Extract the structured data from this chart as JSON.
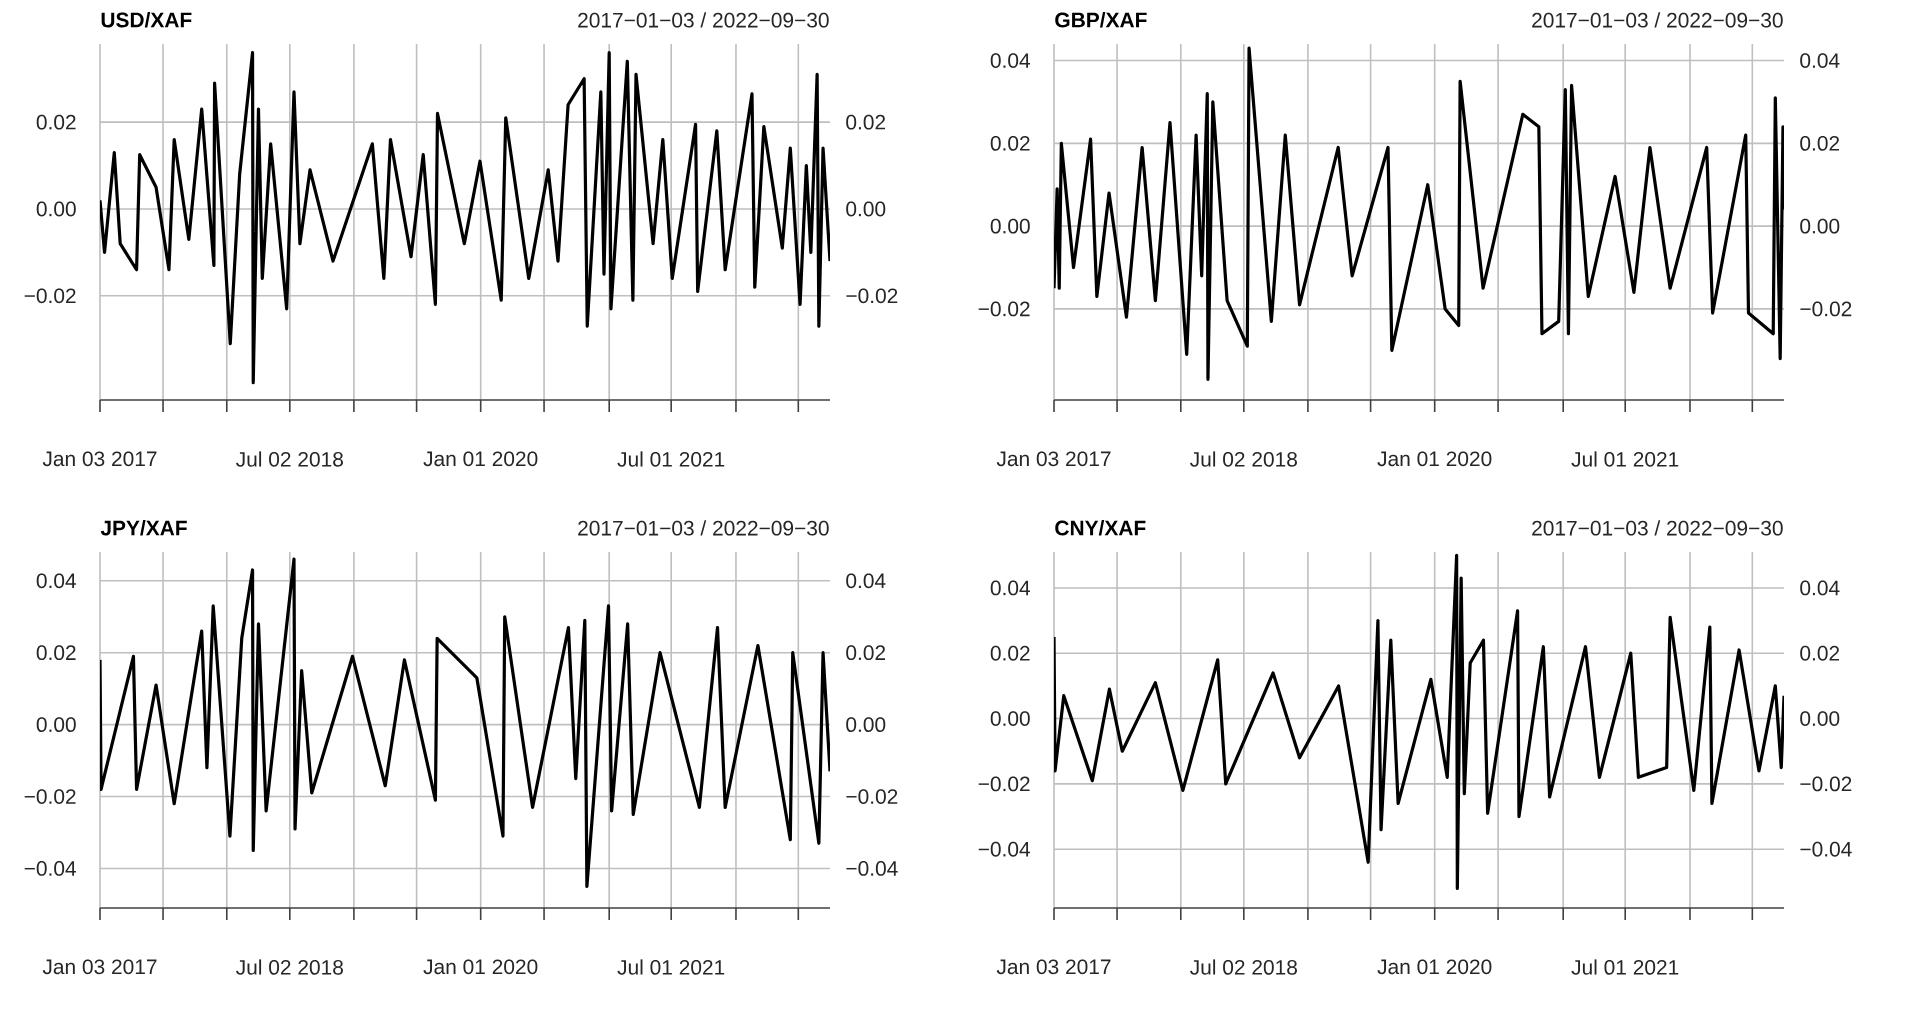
{
  "chart_data": [
    {
      "type": "line",
      "title": "USD/XAF",
      "subtitle": "2017−01−03 / 2022−09−30",
      "grid": true,
      "x": [
        "2017-01-03",
        "2017-01-16",
        "2017-02-13",
        "2017-03-02",
        "2017-04-18",
        "2017-04-27",
        "2017-06-13",
        "2017-07-20",
        "2017-08-04",
        "2017-09-15",
        "2017-10-22",
        "2017-11-26",
        "2017-11-28",
        "2018-01-12",
        "2018-02-08",
        "2018-03-17",
        "2018-03-19",
        "2018-04-03",
        "2018-04-14",
        "2018-05-08",
        "2018-06-23",
        "2018-07-14",
        "2018-07-31",
        "2018-08-29",
        "2018-11-03",
        "2019-02-24",
        "2019-03-29",
        "2019-04-17",
        "2019-06-15",
        "2019-07-20",
        "2019-08-24",
        "2019-08-30",
        "2019-11-15",
        "2019-12-30",
        "2020-02-29",
        "2020-03-13",
        "2020-05-18",
        "2020-07-13",
        "2020-08-10",
        "2020-09-08",
        "2020-10-24",
        "2020-11-02",
        "2020-12-11",
        "2020-12-20",
        "2021-01-04",
        "2021-01-09",
        "2021-02-25",
        "2021-03-13",
        "2021-03-22",
        "2021-05-10",
        "2021-06-07",
        "2021-07-04",
        "2021-09-09",
        "2021-09-15",
        "2021-11-09",
        "2021-12-03",
        "2022-02-18",
        "2022-02-26",
        "2022-03-24",
        "2022-05-16",
        "2022-06-08",
        "2022-07-06",
        "2022-07-24",
        "2022-08-06",
        "2022-08-24",
        "2022-08-29",
        "2022-09-10",
        "2022-09-30"
      ],
      "series": [
        {
          "color": "#000000",
          "values": [
            0.002,
            -0.01,
            0.013,
            -0.008,
            -0.014,
            0.0125,
            0.005,
            -0.014,
            0.016,
            -0.007,
            0.023,
            -0.013,
            0.029,
            -0.031,
            0.008,
            0.036,
            -0.04,
            0.023,
            -0.016,
            0.015,
            -0.023,
            0.027,
            -0.008,
            0.009,
            -0.012,
            0.015,
            -0.016,
            0.016,
            -0.011,
            0.0125,
            -0.022,
            0.022,
            -0.008,
            0.011,
            -0.021,
            0.021,
            -0.016,
            0.009,
            -0.012,
            0.024,
            0.03,
            -0.027,
            0.027,
            -0.015,
            0.036,
            -0.023,
            0.034,
            -0.021,
            0.031,
            -0.008,
            0.016,
            -0.016,
            0.0195,
            -0.019,
            0.018,
            -0.014,
            0.0265,
            -0.018,
            0.019,
            -0.009,
            0.014,
            -0.022,
            0.01,
            -0.01,
            0.031,
            -0.027,
            0.014,
            -0.012
          ]
        }
      ],
      "xlim": [
        "2017-01-03",
        "2022-09-30"
      ],
      "xticks": [
        {
          "value": "2017-01-03",
          "label": "Jan 03 2017"
        },
        {
          "value": "2017-07-03",
          "label": null
        },
        {
          "value": "2018-01-02",
          "label": null
        },
        {
          "value": "2018-07-02",
          "label": "Jul 02 2018"
        },
        {
          "value": "2019-01-02",
          "label": null
        },
        {
          "value": "2019-07-01",
          "label": null
        },
        {
          "value": "2020-01-01",
          "label": "Jan 01 2020"
        },
        {
          "value": "2020-07-01",
          "label": null
        },
        {
          "value": "2021-01-04",
          "label": null
        },
        {
          "value": "2021-07-01",
          "label": "Jul 01 2021"
        },
        {
          "value": "2022-01-03",
          "label": null
        },
        {
          "value": "2022-07-01",
          "label": null
        }
      ],
      "ylim": [
        -0.044,
        0.038
      ],
      "yticks": [
        {
          "value": -0.02,
          "label": "−0.02"
        },
        {
          "value": 0,
          "label": "0.00"
        },
        {
          "value": 0.02,
          "label": "0.02"
        }
      ],
      "y2lim": [
        -0.044,
        0.038
      ],
      "y2ticks": [
        {
          "value": -0.02,
          "label": "−0.02"
        },
        {
          "value": 0,
          "label": "0.00"
        },
        {
          "value": 0.02,
          "label": "0.02"
        }
      ]
    },
    {
      "type": "line",
      "title": "GBP/XAF",
      "subtitle": "2017−01−03 / 2022−09−30",
      "grid": true,
      "x": [
        "2017-01-03",
        "2017-01-12",
        "2017-01-18",
        "2017-01-24",
        "2017-02-28",
        "2017-04-18",
        "2017-05-06",
        "2017-06-10",
        "2017-07-30",
        "2017-09-13",
        "2017-10-21",
        "2017-12-02",
        "2018-01-19",
        "2018-02-15",
        "2018-03-03",
        "2018-03-19",
        "2018-03-21",
        "2018-04-04",
        "2018-05-15",
        "2018-07-12",
        "2018-07-17",
        "2018-09-19",
        "2018-10-29",
        "2018-12-09",
        "2019-03-30",
        "2019-05-09",
        "2019-08-20",
        "2019-08-31",
        "2019-12-12",
        "2020-01-31",
        "2020-03-10",
        "2020-03-14",
        "2020-05-19",
        "2020-09-10",
        "2020-10-26",
        "2020-11-04",
        "2020-12-22",
        "2021-01-10",
        "2021-01-19",
        "2021-01-28",
        "2021-03-17",
        "2021-06-02",
        "2021-07-26",
        "2021-09-10",
        "2021-11-07",
        "2022-02-20",
        "2022-03-09",
        "2022-06-12",
        "2022-06-20",
        "2022-08-30",
        "2022-09-05",
        "2022-09-19",
        "2022-09-27",
        "2022-09-30"
      ],
      "series": [
        {
          "color": "#000000",
          "values": [
            -0.015,
            0.009,
            -0.015,
            0.02,
            -0.01,
            0.021,
            -0.017,
            0.008,
            -0.022,
            0.019,
            -0.018,
            0.025,
            -0.031,
            0.022,
            -0.012,
            0.032,
            -0.037,
            0.03,
            -0.018,
            -0.029,
            0.043,
            -0.023,
            0.022,
            -0.019,
            0.019,
            -0.012,
            0.019,
            -0.03,
            0.01,
            -0.02,
            -0.024,
            0.035,
            -0.015,
            0.027,
            0.024,
            -0.026,
            -0.023,
            0.033,
            -0.026,
            0.034,
            -0.017,
            0.012,
            -0.016,
            0.019,
            -0.015,
            0.019,
            -0.021,
            0.022,
            -0.021,
            -0.026,
            0.031,
            -0.032,
            0.024,
            0.004
          ]
        }
      ],
      "xlim": [
        "2017-01-03",
        "2022-09-30"
      ],
      "xticks": [
        {
          "value": "2017-01-03",
          "label": "Jan 03 2017"
        },
        {
          "value": "2017-07-03",
          "label": null
        },
        {
          "value": "2018-01-02",
          "label": null
        },
        {
          "value": "2018-07-02",
          "label": "Jul 02 2018"
        },
        {
          "value": "2019-01-02",
          "label": null
        },
        {
          "value": "2019-07-01",
          "label": null
        },
        {
          "value": "2020-01-01",
          "label": "Jan 01 2020"
        },
        {
          "value": "2020-07-01",
          "label": null
        },
        {
          "value": "2021-01-04",
          "label": null
        },
        {
          "value": "2021-07-01",
          "label": "Jul 01 2021"
        },
        {
          "value": "2022-01-03",
          "label": null
        },
        {
          "value": "2022-07-01",
          "label": null
        }
      ],
      "ylim": [
        -0.042,
        0.044
      ],
      "yticks": [
        {
          "value": -0.02,
          "label": "−0.02"
        },
        {
          "value": 0,
          "label": "0.00"
        },
        {
          "value": 0.02,
          "label": "0.02"
        },
        {
          "value": 0.04,
          "label": "0.04"
        }
      ],
      "y2lim": [
        -0.042,
        0.044
      ],
      "y2ticks": [
        {
          "value": -0.02,
          "label": "−0.02"
        },
        {
          "value": 0,
          "label": "0.00"
        },
        {
          "value": 0.02,
          "label": "0.02"
        },
        {
          "value": 0.04,
          "label": "0.04"
        }
      ]
    },
    {
      "type": "line",
      "title": "JPY/XAF",
      "subtitle": "2017−01−03 / 2022−09−30",
      "grid": true,
      "x": [
        "2017-01-03",
        "2017-01-06",
        "2017-04-09",
        "2017-04-18",
        "2017-06-13",
        "2017-08-04",
        "2017-10-22",
        "2017-11-06",
        "2017-11-24",
        "2018-01-11",
        "2018-02-14",
        "2018-03-17",
        "2018-03-19",
        "2018-04-03",
        "2018-04-25",
        "2018-07-14",
        "2018-07-17",
        "2018-08-05",
        "2018-09-03",
        "2018-12-29",
        "2019-04-02",
        "2019-05-27",
        "2019-08-24",
        "2019-08-29",
        "2019-12-21",
        "2020-03-05",
        "2020-03-10",
        "2020-05-29",
        "2020-09-09",
        "2020-09-30",
        "2020-10-26",
        "2020-11-01",
        "2021-01-02",
        "2021-01-11",
        "2021-02-26",
        "2021-03-14",
        "2021-05-30",
        "2021-09-20",
        "2021-11-11",
        "2021-12-03",
        "2022-03-07",
        "2022-06-08",
        "2022-06-15",
        "2022-08-29",
        "2022-09-10",
        "2022-09-30"
      ],
      "series": [
        {
          "color": "#000000",
          "values": [
            0.018,
            -0.018,
            0.019,
            -0.018,
            0.011,
            -0.022,
            0.026,
            -0.012,
            0.033,
            -0.031,
            0.024,
            0.043,
            -0.035,
            0.028,
            -0.024,
            0.046,
            -0.029,
            0.015,
            -0.019,
            0.019,
            -0.017,
            0.018,
            -0.021,
            0.024,
            0.013,
            -0.031,
            0.03,
            -0.023,
            0.027,
            -0.015,
            0.029,
            -0.045,
            0.033,
            -0.024,
            0.028,
            -0.025,
            0.02,
            -0.023,
            0.027,
            -0.023,
            0.022,
            -0.032,
            0.02,
            -0.033,
            0.02,
            -0.013
          ]
        }
      ],
      "xlim": [
        "2017-01-03",
        "2022-09-30"
      ],
      "xticks": [
        {
          "value": "2017-01-03",
          "label": "Jan 03 2017"
        },
        {
          "value": "2017-07-03",
          "label": null
        },
        {
          "value": "2018-01-02",
          "label": null
        },
        {
          "value": "2018-07-02",
          "label": "Jul 02 2018"
        },
        {
          "value": "2019-01-02",
          "label": null
        },
        {
          "value": "2019-07-01",
          "label": null
        },
        {
          "value": "2020-01-01",
          "label": "Jan 01 2020"
        },
        {
          "value": "2020-07-01",
          "label": null
        },
        {
          "value": "2021-01-04",
          "label": null
        },
        {
          "value": "2021-07-01",
          "label": "Jul 01 2021"
        },
        {
          "value": "2022-01-03",
          "label": null
        },
        {
          "value": "2022-07-01",
          "label": null
        }
      ],
      "ylim": [
        -0.051,
        0.048
      ],
      "yticks": [
        {
          "value": -0.04,
          "label": "−0.04"
        },
        {
          "value": -0.02,
          "label": "−0.02"
        },
        {
          "value": 0,
          "label": "0.00"
        },
        {
          "value": 0.02,
          "label": "0.02"
        },
        {
          "value": 0.04,
          "label": "0.04"
        }
      ],
      "y2lim": [
        -0.051,
        0.048
      ],
      "y2ticks": [
        {
          "value": -0.04,
          "label": "−0.04"
        },
        {
          "value": -0.02,
          "label": "−0.02"
        },
        {
          "value": 0,
          "label": "0.00"
        },
        {
          "value": 0.02,
          "label": "0.02"
        },
        {
          "value": 0.04,
          "label": "0.04"
        }
      ]
    },
    {
      "type": "line",
      "title": "CNY/XAF",
      "subtitle": "2017−01−03 / 2022−09−30",
      "grid": true,
      "x": [
        "2017-01-03",
        "2017-01-06",
        "2017-01-31",
        "2017-04-23",
        "2017-06-11",
        "2017-07-18",
        "2017-10-21",
        "2018-01-08",
        "2018-04-18",
        "2018-05-11",
        "2018-09-24",
        "2018-12-09",
        "2019-03-31",
        "2019-06-24",
        "2019-07-22",
        "2019-07-31",
        "2019-08-28",
        "2019-09-18",
        "2019-12-21",
        "2020-02-06",
        "2020-03-04",
        "2020-03-06",
        "2020-03-17",
        "2020-03-26",
        "2020-04-12",
        "2020-05-20",
        "2020-06-01",
        "2020-08-26",
        "2020-08-30",
        "2020-11-08",
        "2020-11-26",
        "2021-03-09",
        "2021-04-18",
        "2021-07-17",
        "2021-08-08",
        "2021-10-28",
        "2021-11-07",
        "2022-01-14",
        "2022-03-01",
        "2022-03-07",
        "2022-05-24",
        "2022-07-20",
        "2022-09-05",
        "2022-09-22",
        "2022-09-30"
      ],
      "series": [
        {
          "color": "#000000",
          "values": [
            0.025,
            -0.016,
            0.007,
            -0.019,
            0.009,
            -0.01,
            0.011,
            -0.022,
            0.018,
            -0.02,
            0.014,
            -0.012,
            0.01,
            -0.044,
            0.03,
            -0.034,
            0.024,
            -0.026,
            0.012,
            -0.018,
            0.05,
            -0.052,
            0.043,
            -0.023,
            0.017,
            0.024,
            -0.029,
            0.033,
            -0.03,
            0.022,
            -0.024,
            0.022,
            -0.018,
            0.02,
            -0.018,
            -0.015,
            0.031,
            -0.022,
            0.028,
            -0.026,
            0.021,
            -0.016,
            0.01,
            -0.015,
            0.007
          ]
        }
      ],
      "xlim": [
        "2017-01-03",
        "2022-09-30"
      ],
      "xticks": [
        {
          "value": "2017-01-03",
          "label": "Jan 03 2017"
        },
        {
          "value": "2017-07-03",
          "label": null
        },
        {
          "value": "2018-01-02",
          "label": null
        },
        {
          "value": "2018-07-02",
          "label": "Jul 02 2018"
        },
        {
          "value": "2019-01-02",
          "label": null
        },
        {
          "value": "2019-07-01",
          "label": null
        },
        {
          "value": "2020-01-01",
          "label": "Jan 01 2020"
        },
        {
          "value": "2020-07-01",
          "label": null
        },
        {
          "value": "2021-01-04",
          "label": null
        },
        {
          "value": "2021-07-01",
          "label": "Jul 01 2021"
        },
        {
          "value": "2022-01-03",
          "label": null
        },
        {
          "value": "2022-07-01",
          "label": null
        }
      ],
      "ylim": [
        -0.058,
        0.051
      ],
      "yticks": [
        {
          "value": -0.04,
          "label": "−0.04"
        },
        {
          "value": -0.02,
          "label": "−0.02"
        },
        {
          "value": 0,
          "label": "0.00"
        },
        {
          "value": 0.02,
          "label": "0.02"
        },
        {
          "value": 0.04,
          "label": "0.04"
        }
      ],
      "y2lim": [
        -0.058,
        0.051
      ],
      "y2ticks": [
        {
          "value": -0.04,
          "label": "−0.04"
        },
        {
          "value": -0.02,
          "label": "−0.02"
        },
        {
          "value": 0,
          "label": "0.00"
        },
        {
          "value": 0.02,
          "label": "0.02"
        },
        {
          "value": 0.04,
          "label": "0.04"
        }
      ]
    }
  ]
}
